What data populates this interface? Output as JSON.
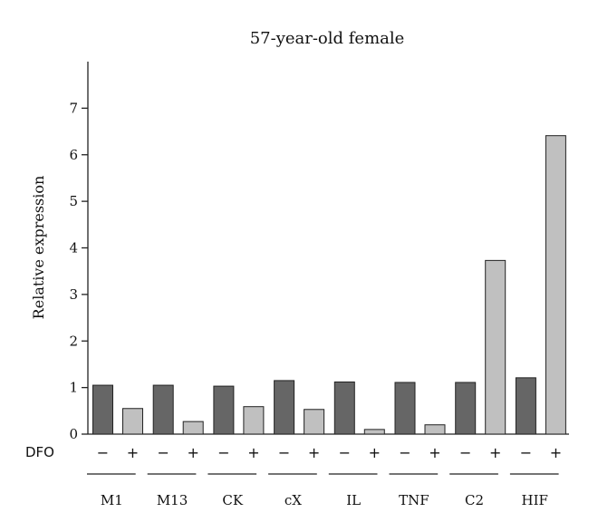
{
  "chart_data": {
    "type": "bar",
    "title": "57-year-old female",
    "ylabel": "Relative expression",
    "xlabel": "",
    "ylim": [
      0,
      8
    ],
    "yticks": [
      0,
      1,
      2,
      3,
      4,
      5,
      6,
      7
    ],
    "grid": false,
    "treatment_label": "DFO",
    "treatment_levels": [
      "−",
      "+"
    ],
    "categories": [
      "M1",
      "M13",
      "CK",
      "cX",
      "IL",
      "TNF",
      "C2",
      "HIF"
    ],
    "series": [
      {
        "values": [
          1.05,
          1.05,
          1.03,
          1.15,
          1.12,
          1.11,
          1.11,
          1.21
        ],
        "color": "#666666"
      },
      {
        "values": [
          0.55,
          0.27,
          0.59,
          0.53,
          0.1,
          0.2,
          3.73,
          6.41
        ],
        "color": "#c0c0c0"
      }
    ]
  }
}
